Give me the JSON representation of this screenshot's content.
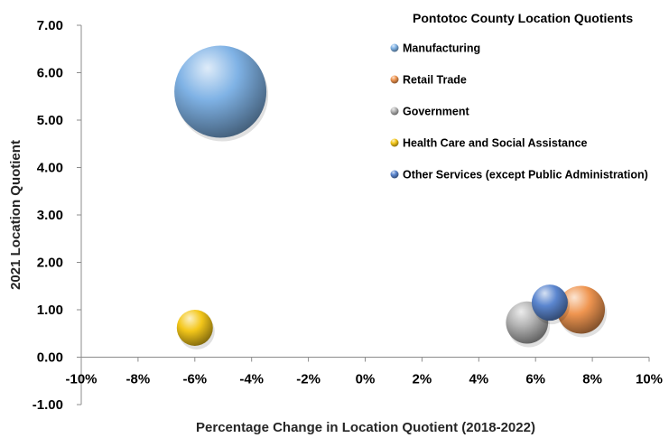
{
  "chart_data": {
    "type": "bubble",
    "title": "Pontotoc County Location Quotients",
    "xlabel": "Percentage Change in Location Quotient (2018-2022)",
    "ylabel": "2021 Location Quotient",
    "xlim": [
      -0.1,
      0.1
    ],
    "ylim": [
      -1.0,
      7.0
    ],
    "x_ticks": [
      "-10%",
      "-8%",
      "-6%",
      "-4%",
      "-2%",
      "0%",
      "2%",
      "4%",
      "6%",
      "8%",
      "10%"
    ],
    "y_ticks": [
      "7.00",
      "6.00",
      "5.00",
      "4.00",
      "3.00",
      "2.00",
      "1.00",
      "0.00",
      "-1.00"
    ],
    "legend_position": "top-right",
    "grid": false,
    "series": [
      {
        "name": "Manufacturing",
        "color": "#7fb2e5",
        "x": -0.051,
        "y": 5.6,
        "size": 1.0
      },
      {
        "name": "Retail Trade",
        "color": "#ef9550",
        "x": 0.076,
        "y": 1.0,
        "size": 0.27
      },
      {
        "name": "Government",
        "color": "#b3b3b3",
        "x": 0.057,
        "y": 0.73,
        "size": 0.21
      },
      {
        "name": "Health Care and Social Assistance",
        "color": "#f4c71a",
        "x": -0.06,
        "y": 0.62,
        "size": 0.04
      },
      {
        "name": "Other Services (except Public Administration)",
        "color": "#5b86cf",
        "x": 0.065,
        "y": 1.15,
        "size": 0.04
      }
    ]
  }
}
